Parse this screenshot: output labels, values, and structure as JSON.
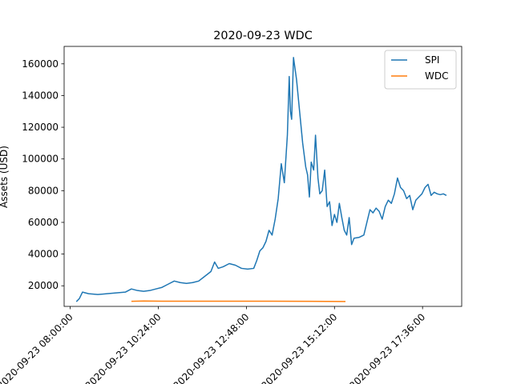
{
  "chart_data": {
    "type": "line",
    "title": "2020-09-23 WDC",
    "xlabel": "",
    "ylabel": "Assets (USD)",
    "x_ticks": [
      "2020-09-23 08:00:00",
      "2020-09-23 10:24:00",
      "2020-09-23 12:48:00",
      "2020-09-23 15:12:00",
      "2020-09-23 17:36:00"
    ],
    "y_ticks": [
      20000,
      40000,
      60000,
      80000,
      100000,
      120000,
      140000,
      160000
    ],
    "y_tick_labels": [
      "20000",
      "40000",
      "60000",
      "80000",
      "100000",
      "120000",
      "140000",
      "160000"
    ],
    "xlim": [
      "2020-09-23 07:50",
      "2020-09-23 18:40"
    ],
    "ylim": [
      7000,
      171000
    ],
    "grid": false,
    "legend_position": "top-right",
    "series": [
      {
        "name": "SPI",
        "color": "#1f77b4",
        "points": [
          [
            "2020-09-23 08:10",
            10000
          ],
          [
            "2020-09-23 08:15",
            12000
          ],
          [
            "2020-09-23 08:20",
            16000
          ],
          [
            "2020-09-23 08:30",
            15000
          ],
          [
            "2020-09-23 08:45",
            14500
          ],
          [
            "2020-09-23 09:00",
            15000
          ],
          [
            "2020-09-23 09:15",
            15500
          ],
          [
            "2020-09-23 09:30",
            16000
          ],
          [
            "2020-09-23 09:40",
            18000
          ],
          [
            "2020-09-23 09:50",
            17000
          ],
          [
            "2020-09-23 10:00",
            16500
          ],
          [
            "2020-09-23 10:10",
            17000
          ],
          [
            "2020-09-23 10:20",
            18000
          ],
          [
            "2020-09-23 10:30",
            19000
          ],
          [
            "2020-09-23 10:40",
            21000
          ],
          [
            "2020-09-23 10:50",
            23000
          ],
          [
            "2020-09-23 11:00",
            22000
          ],
          [
            "2020-09-23 11:10",
            21500
          ],
          [
            "2020-09-23 11:20",
            22000
          ],
          [
            "2020-09-23 11:30",
            23000
          ],
          [
            "2020-09-23 11:40",
            26000
          ],
          [
            "2020-09-23 11:50",
            29000
          ],
          [
            "2020-09-23 11:56",
            35000
          ],
          [
            "2020-09-23 12:02",
            31000
          ],
          [
            "2020-09-23 12:10",
            32000
          ],
          [
            "2020-09-23 12:20",
            34000
          ],
          [
            "2020-09-23 12:30",
            33000
          ],
          [
            "2020-09-23 12:40",
            31000
          ],
          [
            "2020-09-23 12:50",
            30500
          ],
          [
            "2020-09-23 13:00",
            31000
          ],
          [
            "2020-09-23 13:05",
            36000
          ],
          [
            "2020-09-23 13:10",
            42000
          ],
          [
            "2020-09-23 13:15",
            44000
          ],
          [
            "2020-09-23 13:20",
            48000
          ],
          [
            "2020-09-23 13:25",
            55000
          ],
          [
            "2020-09-23 13:30",
            52000
          ],
          [
            "2020-09-23 13:35",
            62000
          ],
          [
            "2020-09-23 13:40",
            75000
          ],
          [
            "2020-09-23 13:45",
            97000
          ],
          [
            "2020-09-23 13:50",
            85000
          ],
          [
            "2020-09-23 13:55",
            115000
          ],
          [
            "2020-09-23 13:58",
            152000
          ],
          [
            "2020-09-23 14:00",
            130000
          ],
          [
            "2020-09-23 14:02",
            125000
          ],
          [
            "2020-09-23 14:05",
            164000
          ],
          [
            "2020-09-23 14:10",
            150000
          ],
          [
            "2020-09-23 14:15",
            130000
          ],
          [
            "2020-09-23 14:20",
            110000
          ],
          [
            "2020-09-23 14:25",
            95000
          ],
          [
            "2020-09-23 14:28",
            90000
          ],
          [
            "2020-09-23 14:31",
            76000
          ],
          [
            "2020-09-23 14:34",
            98000
          ],
          [
            "2020-09-23 14:38",
            93000
          ],
          [
            "2020-09-23 14:41",
            115000
          ],
          [
            "2020-09-23 14:45",
            88000
          ],
          [
            "2020-09-23 14:48",
            78000
          ],
          [
            "2020-09-23 14:52",
            80000
          ],
          [
            "2020-09-23 14:56",
            93000
          ],
          [
            "2020-09-23 15:00",
            70000
          ],
          [
            "2020-09-23 15:04",
            73000
          ],
          [
            "2020-09-23 15:08",
            58000
          ],
          [
            "2020-09-23 15:12",
            65000
          ],
          [
            "2020-09-23 15:16",
            60000
          ],
          [
            "2020-09-23 15:20",
            72000
          ],
          [
            "2020-09-23 15:24",
            63000
          ],
          [
            "2020-09-23 15:28",
            55000
          ],
          [
            "2020-09-23 15:32",
            52000
          ],
          [
            "2020-09-23 15:36",
            63000
          ],
          [
            "2020-09-23 15:40",
            46000
          ],
          [
            "2020-09-23 15:44",
            50000
          ],
          [
            "2020-09-23 15:52",
            50500
          ],
          [
            "2020-09-23 16:00",
            52000
          ],
          [
            "2020-09-23 16:05",
            60000
          ],
          [
            "2020-09-23 16:10",
            68000
          ],
          [
            "2020-09-23 16:15",
            66000
          ],
          [
            "2020-09-23 16:20",
            69000
          ],
          [
            "2020-09-23 16:25",
            67000
          ],
          [
            "2020-09-23 16:30",
            62000
          ],
          [
            "2020-09-23 16:35",
            70000
          ],
          [
            "2020-09-23 16:40",
            74000
          ],
          [
            "2020-09-23 16:45",
            72000
          ],
          [
            "2020-09-23 16:50",
            78000
          ],
          [
            "2020-09-23 16:55",
            88000
          ],
          [
            "2020-09-23 17:00",
            82000
          ],
          [
            "2020-09-23 17:05",
            80000
          ],
          [
            "2020-09-23 17:10",
            75000
          ],
          [
            "2020-09-23 17:15",
            77000
          ],
          [
            "2020-09-23 17:20",
            68000
          ],
          [
            "2020-09-23 17:25",
            74000
          ],
          [
            "2020-09-23 17:30",
            76000
          ],
          [
            "2020-09-23 17:35",
            78000
          ],
          [
            "2020-09-23 17:40",
            82000
          ],
          [
            "2020-09-23 17:45",
            84000
          ],
          [
            "2020-09-23 17:50",
            77000
          ],
          [
            "2020-09-23 17:55",
            79000
          ],
          [
            "2020-09-23 18:00",
            78000
          ],
          [
            "2020-09-23 18:05",
            77500
          ],
          [
            "2020-09-23 18:10",
            78000
          ],
          [
            "2020-09-23 18:15",
            77000
          ]
        ]
      },
      {
        "name": "WDC",
        "color": "#ff7f0e",
        "points": [
          [
            "2020-09-23 09:40",
            10200
          ],
          [
            "2020-09-23 10:00",
            10400
          ],
          [
            "2020-09-23 10:30",
            10300
          ],
          [
            "2020-09-23 11:30",
            10300
          ],
          [
            "2020-09-23 12:30",
            10300
          ],
          [
            "2020-09-23 13:30",
            10300
          ],
          [
            "2020-09-23 14:30",
            10200
          ],
          [
            "2020-09-23 15:30",
            10100
          ]
        ]
      }
    ]
  }
}
